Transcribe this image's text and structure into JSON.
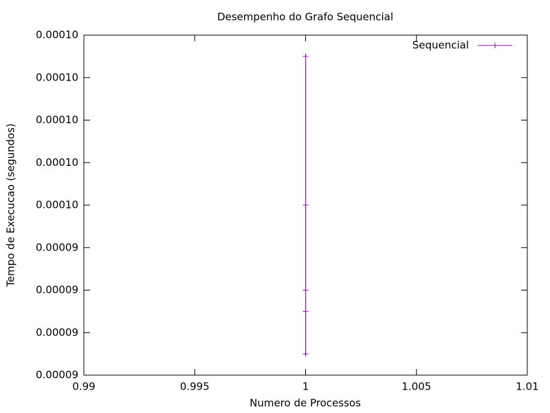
{
  "chart_data": {
    "type": "line",
    "title": "Desempenho do Grafo Sequencial",
    "x_label": "Numero de Processos",
    "y_label": "Tempo de Execucao (segundos)",
    "x": [
      1,
      1,
      1,
      1,
      1
    ],
    "series": [
      {
        "name": "Sequencial",
        "color": "#9400d3",
        "marker": "+",
        "values": [
          9.85e-05,
          9.5e-05,
          9.3e-05,
          9.25e-05,
          9.15e-05
        ]
      }
    ],
    "xlim": [
      0.99,
      1.01
    ],
    "xticks": [
      0.99,
      0.995,
      1,
      1.005,
      1.01
    ],
    "ylim": [
      9.1e-05,
      9.9e-05
    ],
    "yticks": [
      {
        "value": 9.1e-05,
        "label": "0.00009"
      },
      {
        "value": 9.2e-05,
        "label": "0.00009"
      },
      {
        "value": 9.3e-05,
        "label": "0.00009"
      },
      {
        "value": 9.4e-05,
        "label": "0.00009"
      },
      {
        "value": 9.5e-05,
        "label": "0.00010"
      },
      {
        "value": 9.6e-05,
        "label": "0.00010"
      },
      {
        "value": 9.7e-05,
        "label": "0.00010"
      },
      {
        "value": 9.8e-05,
        "label": "0.00010"
      },
      {
        "value": 9.9e-05,
        "label": "0.00010"
      }
    ],
    "grid": false,
    "legend": "top-right"
  }
}
